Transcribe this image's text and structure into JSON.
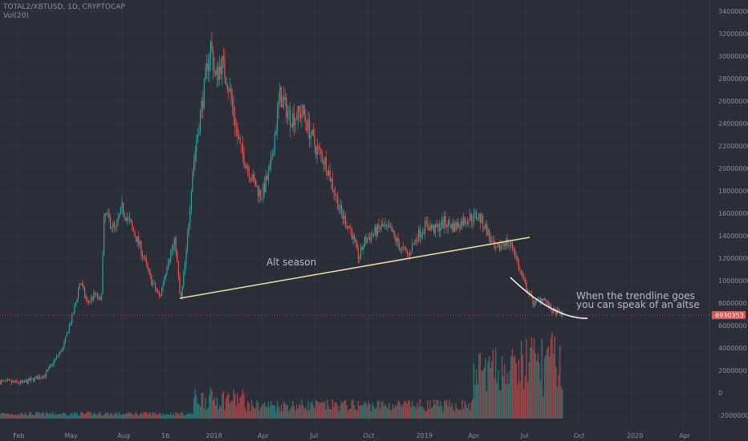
{
  "header": {
    "symbol": "TOTAL2/XBTUSD, 1D, CRYPTOCAP",
    "volume_label": "Vol(20)"
  },
  "colors": {
    "background": "#2a2e39",
    "grid": "#323744",
    "up": "#26a69a",
    "down": "#ef5350",
    "trendline": "#f0e0a0",
    "price_line": "#e55353",
    "axis_text": "#8a8f9c"
  },
  "chart_data": {
    "type": "candlestick",
    "title": "TOTAL2/XBTUSD",
    "x_ticks": [
      "Feb",
      "May",
      "Aug",
      "16",
      "2018",
      "Apr",
      "Jul",
      "Oct",
      "2019",
      "Apr",
      "Jul",
      "Oct",
      "2020",
      "Apr"
    ],
    "y_ticks": [
      "34000000",
      "32000000",
      "30000000",
      "28000000",
      "26000000",
      "24000000",
      "22000000",
      "20000000",
      "18000000",
      "16000000",
      "14000000",
      "12000000",
      "10000000",
      "8000000",
      "6000000",
      "4000000",
      "2000000",
      "0",
      "-2000000"
    ],
    "ylim": [
      -2000000,
      34000000
    ],
    "last_price": "6930353",
    "price_path": [
      [
        "2017-01-01",
        1000000
      ],
      [
        "2017-02-10",
        900000
      ],
      [
        "2017-03-20",
        1600000
      ],
      [
        "2017-04-20",
        4000000
      ],
      [
        "2017-05-10",
        7500000
      ],
      [
        "2017-05-20",
        10000000
      ],
      [
        "2017-06-01",
        8000000
      ],
      [
        "2017-06-15",
        8800000
      ],
      [
        "2017-06-25",
        8000000
      ],
      [
        "2017-07-01",
        16000000
      ],
      [
        "2017-07-20",
        14500000
      ],
      [
        "2017-08-01",
        16500000
      ],
      [
        "2017-08-15",
        15000000
      ],
      [
        "2017-09-01",
        13000000
      ],
      [
        "2017-09-20",
        10000000
      ],
      [
        "2017-10-05",
        8500000
      ],
      [
        "2017-10-20",
        12000000
      ],
      [
        "2017-11-01",
        13500000
      ],
      [
        "2017-11-10",
        8000000
      ],
      [
        "2017-11-20",
        12500000
      ],
      [
        "2017-12-01",
        20000000
      ],
      [
        "2017-12-15",
        25000000
      ],
      [
        "2018-01-01",
        31000000
      ],
      [
        "2018-01-10",
        28000000
      ],
      [
        "2018-01-20",
        29500000
      ],
      [
        "2018-02-01",
        27500000
      ],
      [
        "2018-02-20",
        22000000
      ],
      [
        "2018-03-15",
        19000000
      ],
      [
        "2018-03-30",
        17500000
      ],
      [
        "2018-04-15",
        20000000
      ],
      [
        "2018-05-01",
        26500000
      ],
      [
        "2018-05-20",
        24500000
      ],
      [
        "2018-06-10",
        25000000
      ],
      [
        "2018-07-01",
        22000000
      ],
      [
        "2018-07-20",
        20500000
      ],
      [
        "2018-08-15",
        16000000
      ],
      [
        "2018-09-01",
        14500000
      ],
      [
        "2018-09-15",
        12000000
      ],
      [
        "2018-09-25",
        13500000
      ],
      [
        "2018-10-10",
        14200000
      ],
      [
        "2018-10-25",
        14800000
      ],
      [
        "2018-11-10",
        14400000
      ],
      [
        "2018-11-25",
        13000000
      ],
      [
        "2018-12-10",
        12300000
      ],
      [
        "2018-12-25",
        14000000
      ],
      [
        "2019-01-10",
        15000000
      ],
      [
        "2019-01-25",
        14500000
      ],
      [
        "2019-02-10",
        15200000
      ],
      [
        "2019-03-01",
        14800000
      ],
      [
        "2019-03-20",
        15500000
      ],
      [
        "2019-04-10",
        15800000
      ],
      [
        "2019-04-25",
        14500000
      ],
      [
        "2019-05-10",
        12500000
      ],
      [
        "2019-05-25",
        13500000
      ],
      [
        "2019-06-10",
        13000000
      ],
      [
        "2019-06-20",
        11000000
      ],
      [
        "2019-07-01",
        9500000
      ],
      [
        "2019-07-15",
        8000000
      ],
      [
        "2019-08-01",
        8500000
      ],
      [
        "2019-08-15",
        7300000
      ],
      [
        "2019-08-25",
        7200000
      ],
      [
        "2019-09-05",
        6930353
      ]
    ]
  },
  "annotations": {
    "alt_season": "Alt season",
    "note_line1": "When the trendline goes",
    "note_line2": "you can speak of an altse"
  }
}
